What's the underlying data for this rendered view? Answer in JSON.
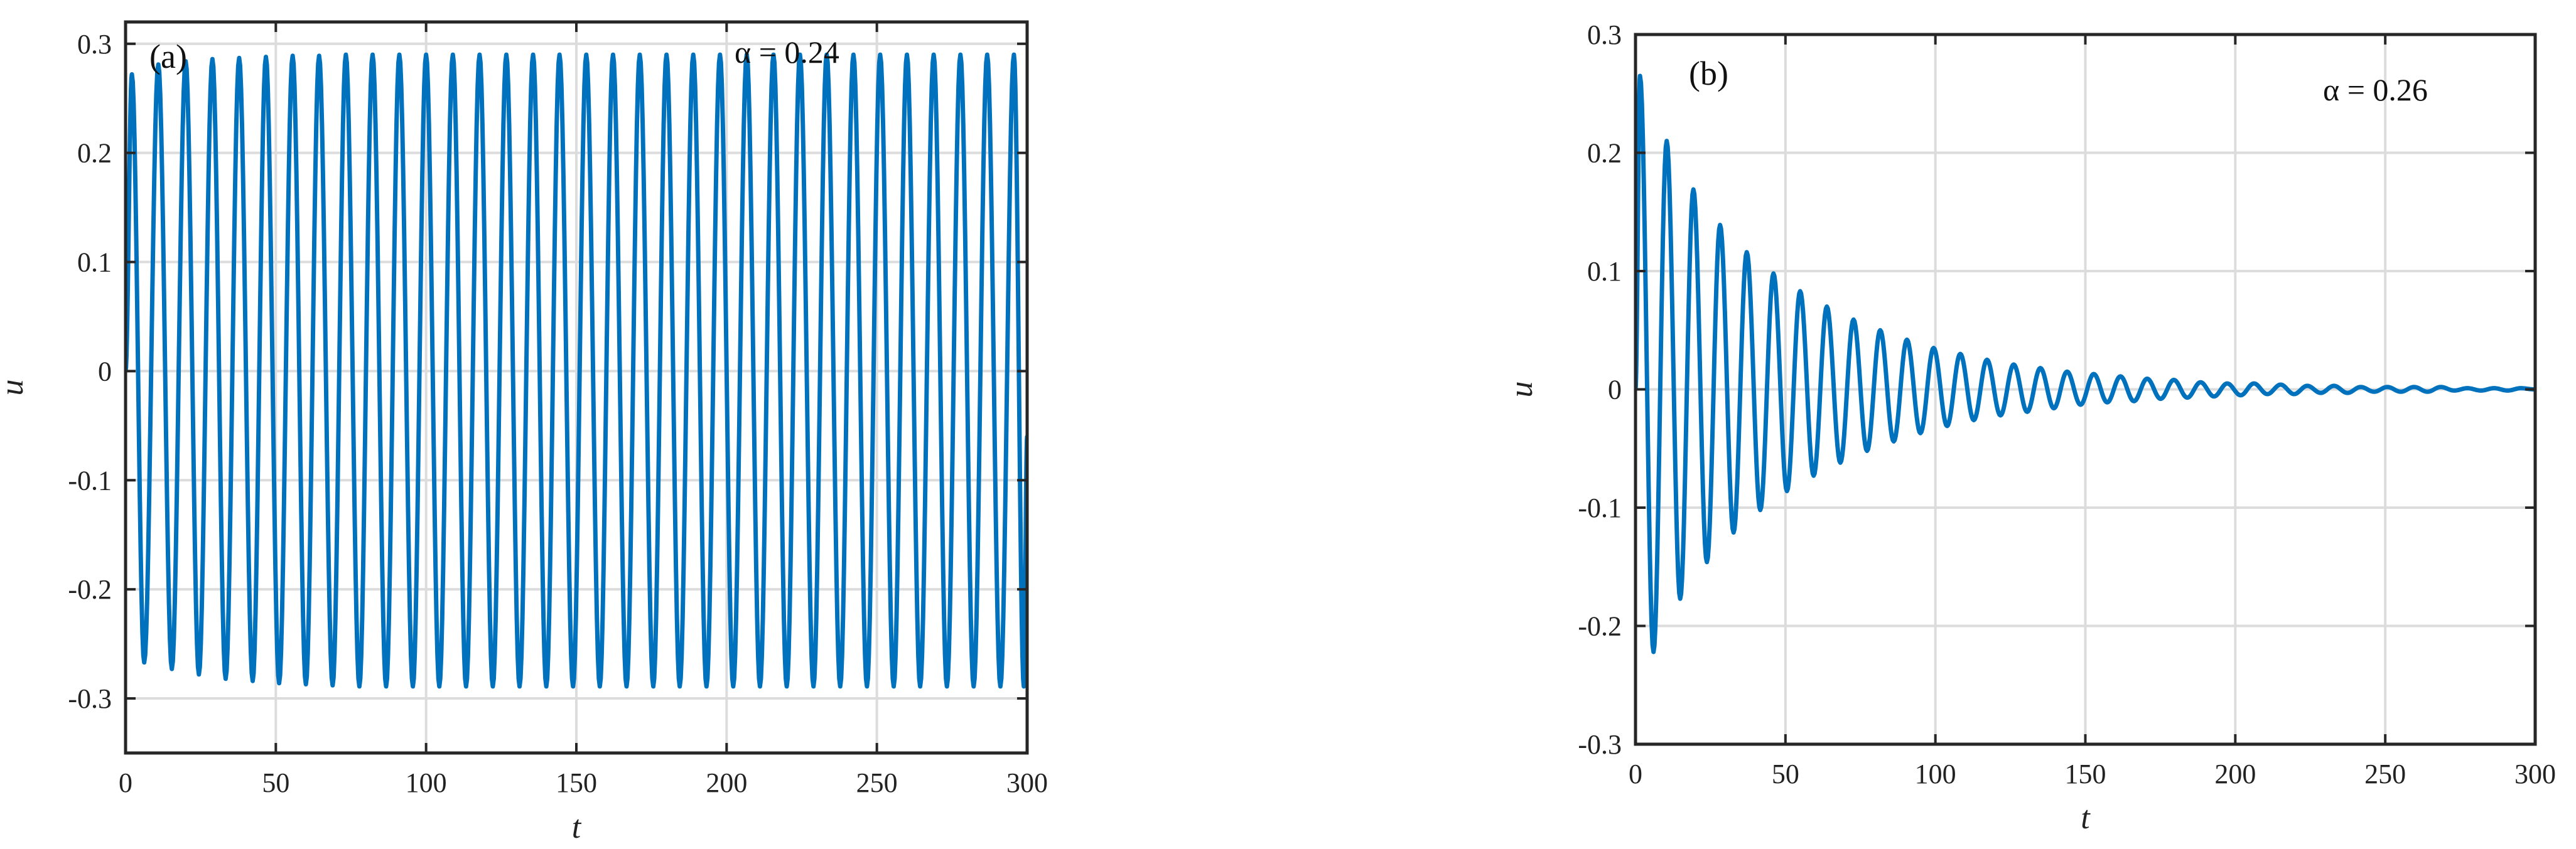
{
  "colors": {
    "series": "#0072BD",
    "grid": "#dcdcdc",
    "axis": "#262626",
    "background": "#ffffff"
  },
  "chart_data": [
    {
      "type": "line",
      "panel_label": "(a)",
      "annotation": "α = 0.24",
      "xlabel": "t",
      "ylabel": "u",
      "xlim": [
        0,
        300
      ],
      "ylim": [
        -0.35,
        0.32
      ],
      "xticks": [
        0,
        50,
        100,
        150,
        200,
        250,
        300
      ],
      "xtick_labels": [
        "0",
        "50",
        "100",
        "150",
        "200",
        "250",
        "300"
      ],
      "yticks": [
        0.3,
        0.2,
        0.1,
        0,
        -0.1,
        -0.2,
        -0.3
      ],
      "ytick_labels": [
        "0.3",
        "0.2",
        "0.1",
        "0",
        "-0.1",
        "-0.2",
        "-0.3"
      ],
      "grid": true,
      "series": [
        {
          "x": [
            0,
            2.1,
            6.2,
            10.9,
            15.4,
            20.0,
            24.4,
            28.9,
            33.3,
            37.8,
            42.3,
            46.7,
            51.1,
            55.6,
            60.0,
            64.4,
            68.9,
            73.3,
            77.8,
            82.2,
            86.7,
            91.1,
            95.6,
            100.0,
            104.4,
            108.9,
            113.3,
            117.8,
            122.2,
            126.7,
            131.1,
            135.6,
            140.0,
            144.4,
            148.9,
            153.3,
            157.8,
            162.2,
            166.7,
            171.1,
            175.6,
            180.0,
            184.4,
            188.9,
            193.3,
            197.8,
            202.2,
            206.7,
            211.1,
            215.6,
            220.0,
            224.4,
            228.9,
            233.3,
            237.8,
            242.2,
            246.7,
            251.1,
            255.6,
            260.0,
            264.4,
            268.9,
            273.3,
            277.8,
            282.2,
            286.7,
            291.1,
            295.6,
            298.9,
            300
          ],
          "y": [
            0.0,
            0.272,
            -0.267,
            0.281,
            -0.273,
            0.284,
            -0.278,
            0.286,
            -0.282,
            0.287,
            -0.284,
            0.288,
            -0.286,
            0.289,
            -0.287,
            0.289,
            -0.288,
            0.29,
            -0.289,
            0.29,
            -0.289,
            0.29,
            -0.289,
            0.29,
            -0.289,
            0.29,
            -0.289,
            0.29,
            -0.289,
            0.29,
            -0.289,
            0.29,
            -0.289,
            0.29,
            -0.289,
            0.29,
            -0.289,
            0.29,
            -0.289,
            0.29,
            -0.289,
            0.29,
            -0.289,
            0.29,
            -0.289,
            0.29,
            -0.289,
            0.29,
            -0.289,
            0.29,
            -0.289,
            0.29,
            -0.289,
            0.29,
            -0.289,
            0.29,
            -0.289,
            0.29,
            -0.289,
            0.29,
            -0.289,
            0.29,
            -0.289,
            0.29,
            -0.289,
            0.29,
            -0.289,
            0.29,
            -0.289,
            -0.06
          ]
        }
      ]
    },
    {
      "type": "line",
      "panel_label": "(b)",
      "annotation": "α = 0.26",
      "xlabel": "t",
      "ylabel": "u",
      "xlim": [
        0,
        300
      ],
      "ylim": [
        -0.3,
        0.3
      ],
      "xticks": [
        0,
        50,
        100,
        150,
        200,
        250,
        300
      ],
      "xtick_labels": [
        "0",
        "50",
        "100",
        "150",
        "200",
        "250",
        "300"
      ],
      "yticks": [
        0.3,
        0.2,
        0.1,
        0,
        -0.1,
        -0.2,
        -0.3
      ],
      "ytick_labels": [
        "0.3",
        "0.2",
        "0.1",
        "0",
        "-0.1",
        "-0.2",
        "-0.3"
      ],
      "grid": true,
      "series": [
        {
          "x": [
            0,
            1.5,
            6.0,
            10.4,
            14.9,
            19.3,
            23.8,
            28.2,
            32.7,
            37.1,
            41.6,
            46.0,
            50.5,
            54.9,
            59.4,
            63.8,
            68.3,
            72.7,
            77.2,
            81.6,
            86.1,
            90.5,
            95.0,
            99.4,
            103.9,
            108.3,
            112.8,
            117.2,
            121.7,
            126.1,
            130.6,
            135.0,
            139.5,
            143.9,
            148.4,
            152.8,
            157.3,
            161.7,
            166.2,
            170.6,
            175.1,
            179.5,
            184.0,
            188.4,
            192.9,
            197.3,
            201.8,
            206.2,
            210.7,
            215.1,
            219.6,
            224.0,
            228.5,
            232.9,
            237.4,
            241.8,
            246.3,
            250.7,
            255.2,
            259.6,
            264.1,
            268.5,
            273.0,
            277.4,
            281.9,
            286.3,
            290.8,
            295.2,
            299.7
          ],
          "y": [
            0.0,
            0.265,
            -0.222,
            0.21,
            -0.177,
            0.169,
            -0.146,
            0.139,
            -0.121,
            0.116,
            -0.102,
            0.098,
            -0.086,
            0.083,
            -0.073,
            0.07,
            -0.062,
            0.059,
            -0.052,
            0.05,
            -0.044,
            0.042,
            -0.037,
            0.035,
            -0.031,
            0.03,
            -0.026,
            0.025,
            -0.022,
            0.021,
            -0.019,
            0.018,
            -0.016,
            0.015,
            -0.013,
            0.013,
            -0.011,
            0.011,
            -0.01,
            0.009,
            -0.008,
            0.008,
            -0.007,
            0.006,
            -0.006,
            0.005,
            -0.005,
            0.005,
            -0.004,
            0.004,
            -0.004,
            0.003,
            -0.003,
            0.003,
            -0.003,
            0.002,
            -0.002,
            0.002,
            -0.002,
            0.002,
            -0.002,
            0.002,
            -0.001,
            0.001,
            -0.001,
            0.001,
            -0.001,
            0.001,
            0.0
          ]
        }
      ]
    }
  ]
}
